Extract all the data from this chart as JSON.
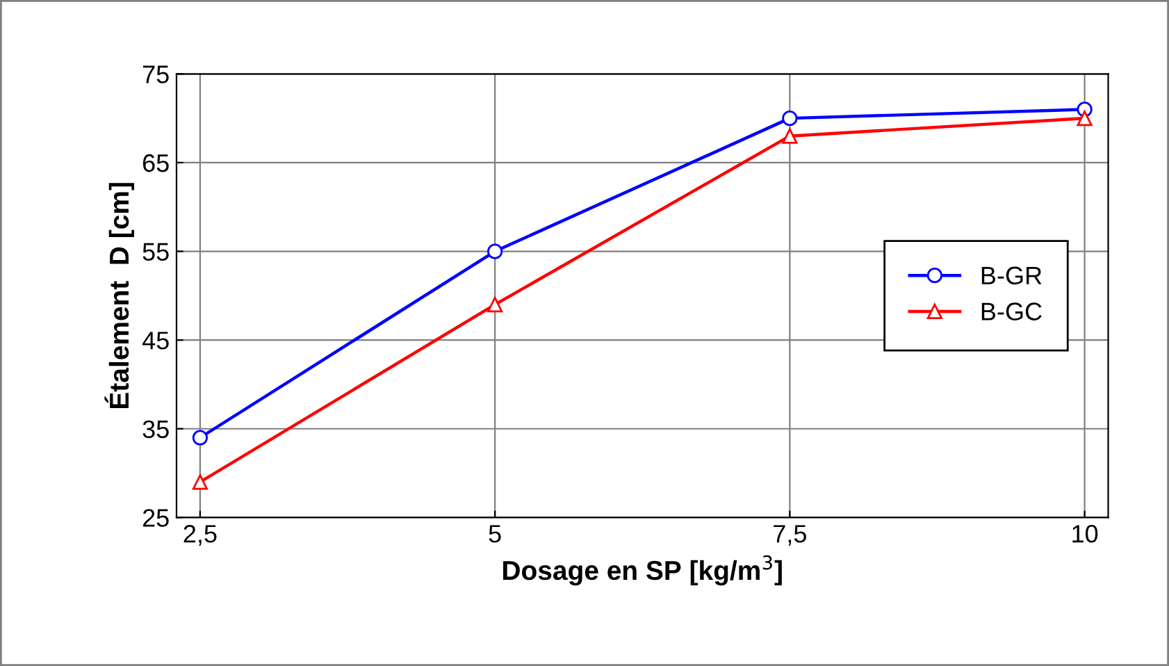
{
  "chart_data": {
    "type": "line",
    "xlabel": "Dosage en SP [kg/m$^{3}$]",
    "ylabel": "Étalement  D [cm]",
    "categories": [
      "2,5",
      "5",
      "7,5",
      "10"
    ],
    "series": [
      {
        "name": "B-GR",
        "color": "#0000ff",
        "values": [
          34,
          55,
          70,
          71
        ],
        "marker": "circle"
      },
      {
        "name": "B-GC",
        "color": "#ff0000",
        "values": [
          29,
          49,
          68,
          70
        ],
        "marker": "triangle"
      }
    ],
    "ylim": [
      25,
      75
    ],
    "yticks": [
      25,
      35,
      45,
      55,
      65,
      75
    ],
    "grid": true,
    "legend": "right",
    "line_style": "solid"
  }
}
